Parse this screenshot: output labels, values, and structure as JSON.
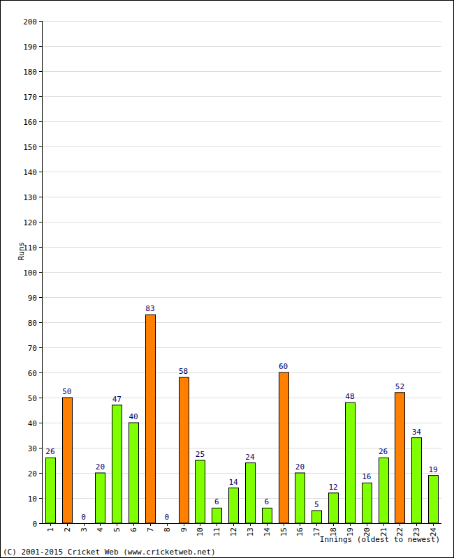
{
  "chart_data": {
    "type": "bar",
    "categories": [
      "1",
      "2",
      "3",
      "4",
      "5",
      "6",
      "7",
      "8",
      "9",
      "10",
      "11",
      "12",
      "13",
      "14",
      "15",
      "16",
      "17",
      "18",
      "19",
      "20",
      "21",
      "22",
      "23",
      "24"
    ],
    "values": [
      26,
      50,
      0,
      20,
      47,
      40,
      83,
      0,
      58,
      25,
      6,
      14,
      24,
      6,
      60,
      20,
      5,
      12,
      48,
      16,
      26,
      52,
      34,
      19
    ],
    "colors": [
      "#80ff00",
      "#ff8000",
      "#80ff00",
      "#80ff00",
      "#80ff00",
      "#80ff00",
      "#ff8000",
      "#80ff00",
      "#ff8000",
      "#80ff00",
      "#80ff00",
      "#80ff00",
      "#80ff00",
      "#80ff00",
      "#ff8000",
      "#80ff00",
      "#80ff00",
      "#80ff00",
      "#80ff00",
      "#80ff00",
      "#80ff00",
      "#ff8000",
      "#80ff00",
      "#80ff00"
    ],
    "y_label": "Runs",
    "x_label": "Innings (oldest to newest)",
    "annotations": [
      "(C) 2001-2015 Cricket Web (www.cricketweb.net)"
    ],
    "ylim": [
      0,
      200
    ],
    "yticks": [
      0,
      10,
      20,
      30,
      40,
      50,
      60,
      70,
      80,
      90,
      100,
      110,
      120,
      130,
      140,
      150,
      160,
      170,
      180,
      190,
      200
    ],
    "grid": true,
    "data_labels": true
  }
}
